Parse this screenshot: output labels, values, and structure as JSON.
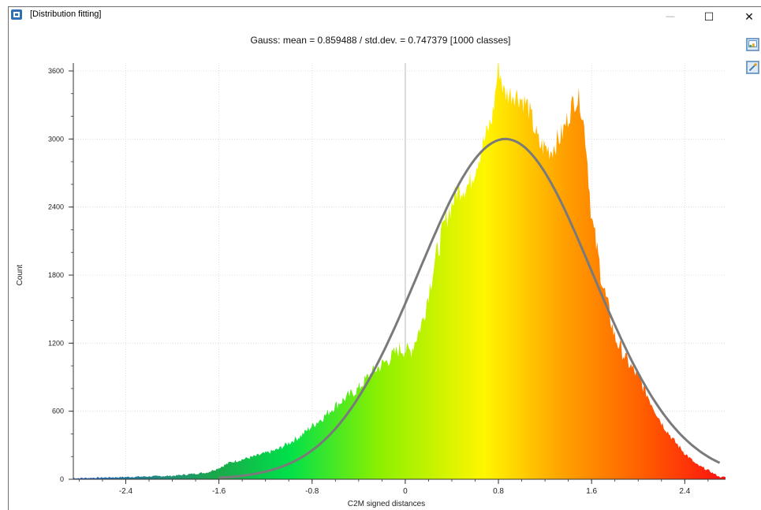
{
  "window": {
    "title": "[Distribution fitting]",
    "minimize_glyph": "—",
    "maximize_glyph": "☐",
    "close_glyph": "✕",
    "icons": [
      "app-icon",
      "export-icon",
      "settings-icon"
    ]
  },
  "chart_data": {
    "type": "bar",
    "title": "Gauss: mean = 0.859488 / std.dev. = 0.747379 [1000 classes]",
    "xlabel": "C2M signed distances",
    "ylabel": "Count",
    "xlim": [
      -2.85,
      2.75
    ],
    "ylim": [
      0,
      3600
    ],
    "x_ticks": [
      "-2.4",
      "-1.6",
      "-0.8",
      "0",
      "0.8",
      "1.6",
      "2.4"
    ],
    "y_ticks": [
      "0",
      "600",
      "1200",
      "1800",
      "2400",
      "3000",
      "3600"
    ],
    "grid": true,
    "gauss_fit": {
      "mean": 0.859488,
      "std_dev": 0.747379,
      "peak": 3000
    },
    "histogram_envelope": {
      "x": [
        -2.8,
        -2.4,
        -2.0,
        -1.7,
        -1.6,
        -1.5,
        -1.3,
        -1.1,
        -0.9,
        -0.8,
        -0.7,
        -0.6,
        -0.4,
        -0.3,
        -0.15,
        -0.05,
        0.05,
        0.15,
        0.25,
        0.35,
        0.45,
        0.55,
        0.65,
        0.75,
        0.8,
        0.85,
        0.95,
        1.05,
        1.15,
        1.25,
        1.35,
        1.45,
        1.5,
        1.55,
        1.6,
        1.7,
        1.8,
        1.9,
        2.0,
        2.1,
        2.2,
        2.3,
        2.4,
        2.5,
        2.6,
        2.7
      ],
      "y": [
        10,
        20,
        30,
        60,
        100,
        150,
        200,
        260,
        380,
        470,
        550,
        650,
        800,
        930,
        1050,
        1150,
        1130,
        1400,
        1900,
        2300,
        2550,
        2600,
        2900,
        3200,
        3650,
        3400,
        3400,
        3300,
        2950,
        2900,
        3050,
        3350,
        3350,
        3000,
        2300,
        1700,
        1250,
        1050,
        900,
        700,
        500,
        350,
        230,
        130,
        80,
        20
      ]
    }
  }
}
